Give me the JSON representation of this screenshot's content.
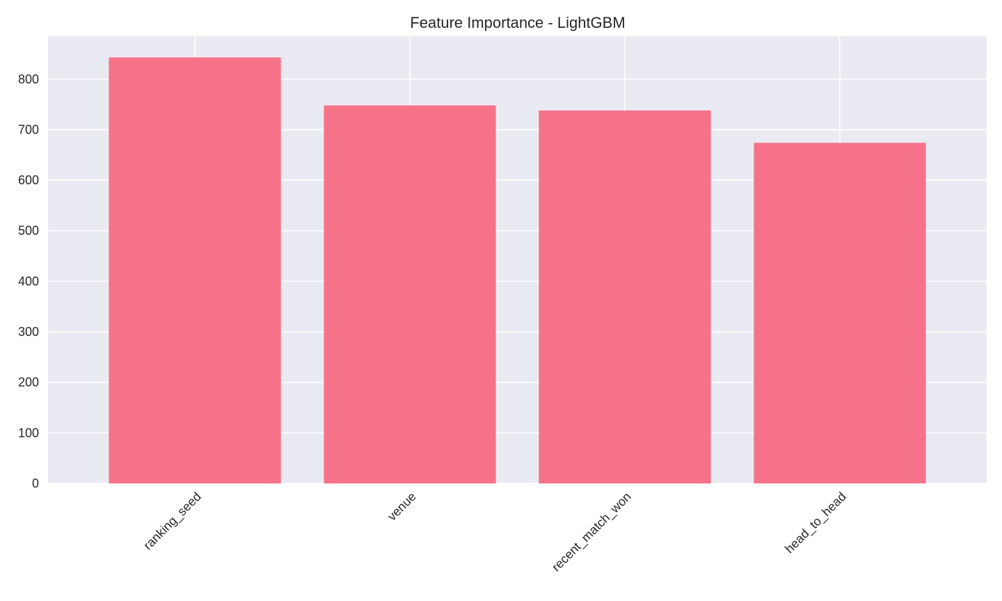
{
  "chart_data": {
    "type": "bar",
    "title": "Feature Importance - LightGBM",
    "xlabel": "",
    "ylabel": "",
    "categories": [
      "ranking_seed",
      "venue",
      "recent_match_won",
      "head_to_head"
    ],
    "values": [
      843,
      748,
      738,
      674
    ],
    "ylim": [
      0,
      885
    ],
    "yticks": [
      0,
      100,
      200,
      300,
      400,
      500,
      600,
      700,
      800
    ],
    "grid": true,
    "legend": "none",
    "colors": {
      "bar": "#f67289",
      "plot_background": "#eaeaf2",
      "grid": "#ffffff",
      "text": "#262626"
    }
  }
}
